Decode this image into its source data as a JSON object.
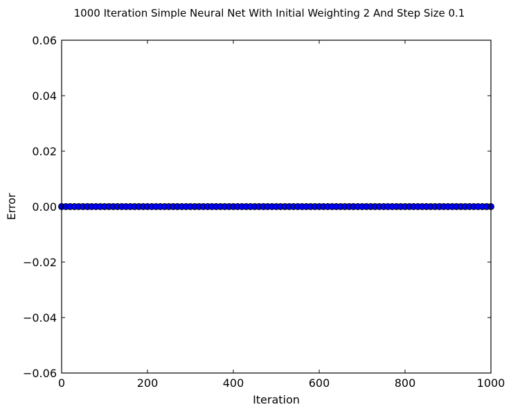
{
  "chart_data": {
    "type": "scatter",
    "title": "1000 Iteration Simple Neural Net With Initial Weighting 2 And Step Size 0.1",
    "xlabel": "Iteration",
    "ylabel": "Error",
    "xlim": [
      0,
      1000
    ],
    "ylim": [
      -0.06,
      0.06
    ],
    "xticks": [
      0,
      200,
      400,
      600,
      800,
      1000
    ],
    "yticks": [
      0.06,
      0.04,
      0.02,
      0.0,
      -0.02,
      -0.04,
      -0.06
    ],
    "xtick_labels": [
      "0",
      "200",
      "400",
      "600",
      "800",
      "1000"
    ],
    "ytick_labels": [
      "0.06",
      "0.04",
      "0.02",
      "0.00",
      "−0.02",
      "−0.04",
      "−0.06"
    ],
    "grid": false,
    "legend": "none",
    "colors": {
      "marker_fill": "#0000ff",
      "marker_edge": "#000000"
    },
    "series": [
      {
        "x_start": 0,
        "x_end": 1000,
        "x_step": 10,
        "y_value": 0.0
      }
    ]
  }
}
